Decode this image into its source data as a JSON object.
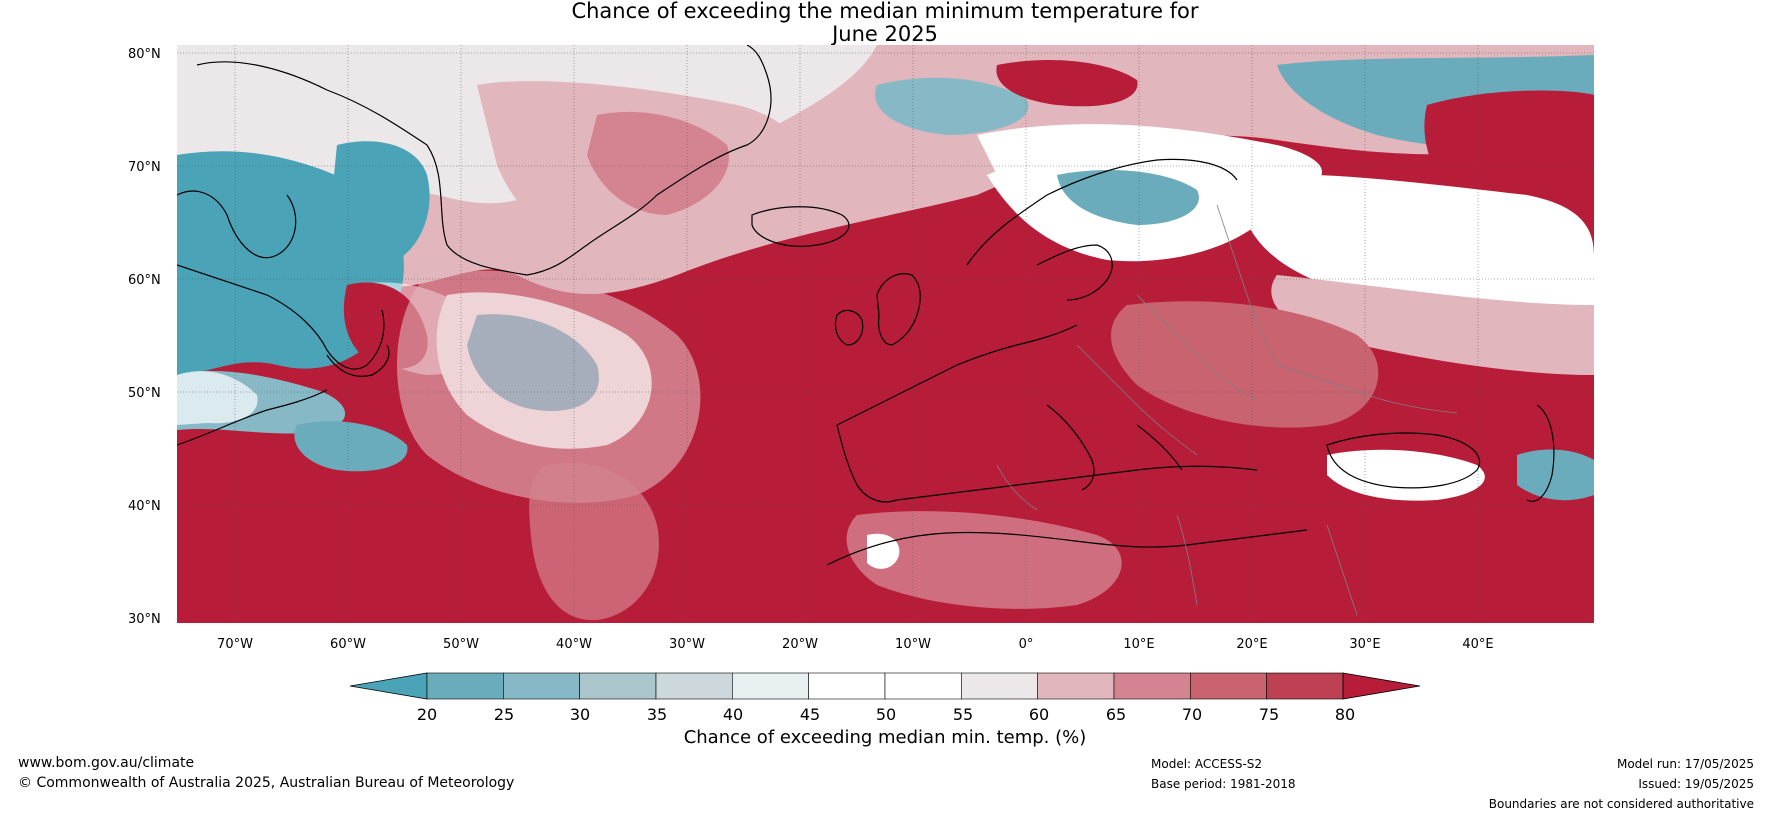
{
  "title_line1": "Chance of exceeding the median minimum temperature for",
  "title_line2": "June 2025",
  "lat_labels": [
    "80°N",
    "70°N",
    "60°N",
    "50°N",
    "40°N",
    "30°N"
  ],
  "lon_labels": [
    "70°W",
    "60°W",
    "50°W",
    "40°W",
    "30°W",
    "20°W",
    "10°W",
    "0°",
    "10°E",
    "20°E",
    "30°E",
    "40°E"
  ],
  "colorbar": {
    "ticks": [
      "20",
      "25",
      "30",
      "35",
      "40",
      "45",
      "50",
      "55",
      "60",
      "65",
      "70",
      "75",
      "80"
    ],
    "colors": [
      "#4aa3b7",
      "#6aacbb",
      "#86b9c5",
      "#aac5cc",
      "#cdd8dc",
      "#e8f0f2",
      "#ffffff",
      "#ffffff",
      "#ece7e8",
      "#e2b6bd",
      "#d48390",
      "#c9636f",
      "#bd4053",
      "#b71c38"
    ],
    "title": "Chance of exceeding median min. temp. (%)"
  },
  "footer": {
    "website": "www.bom.gov.au/climate",
    "copyright": "© Commonwealth of Australia 2025, Australian Bureau of Meteorology",
    "model": "Model: ACCESS-S2",
    "base_period": "Base period: 1981-2018",
    "model_run": "Model run: 17/05/2025",
    "issued": "Issued: 19/05/2025",
    "disclaimer": "Boundaries are not considered authoritative"
  },
  "colors": {
    "warm": "#b71c38",
    "cool": "#4aa3b7"
  }
}
